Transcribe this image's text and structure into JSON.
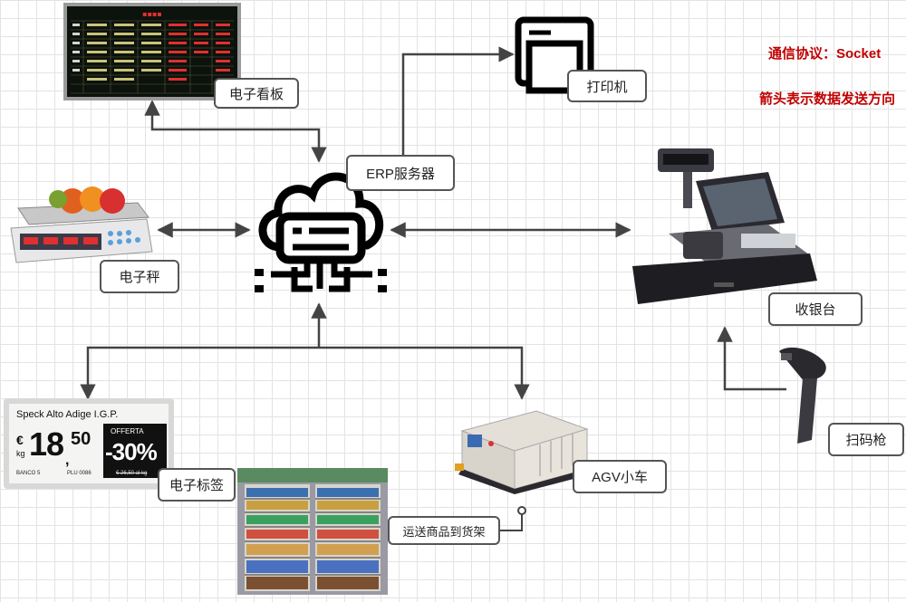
{
  "notes": {
    "protocol": "通信协议：Socket",
    "direction": "箭头表示数据发送方向"
  },
  "labels": {
    "board": "电子看板",
    "printer": "打印机",
    "erp": "ERP服务器",
    "scale": "电子秤",
    "cashier": "收银台",
    "scanner": "扫码枪",
    "esl": "电子标签",
    "agv": "AGV小车",
    "shelf": "运送商品到货架"
  },
  "esl_tag": {
    "product": "Speck Alto Adige I.G.P.",
    "currency": "€",
    "unit": "kg",
    "price_main": "18",
    "price_cents": "50",
    "offer": "OFFERTA",
    "discount": "-30%",
    "banco": "BANCO 5",
    "plu": "PLU 0086",
    "old_price": "€ 26,50 al kg"
  },
  "colors": {
    "note_red": "#c00000",
    "line": "#444444",
    "board_text_red": "#e03030"
  }
}
